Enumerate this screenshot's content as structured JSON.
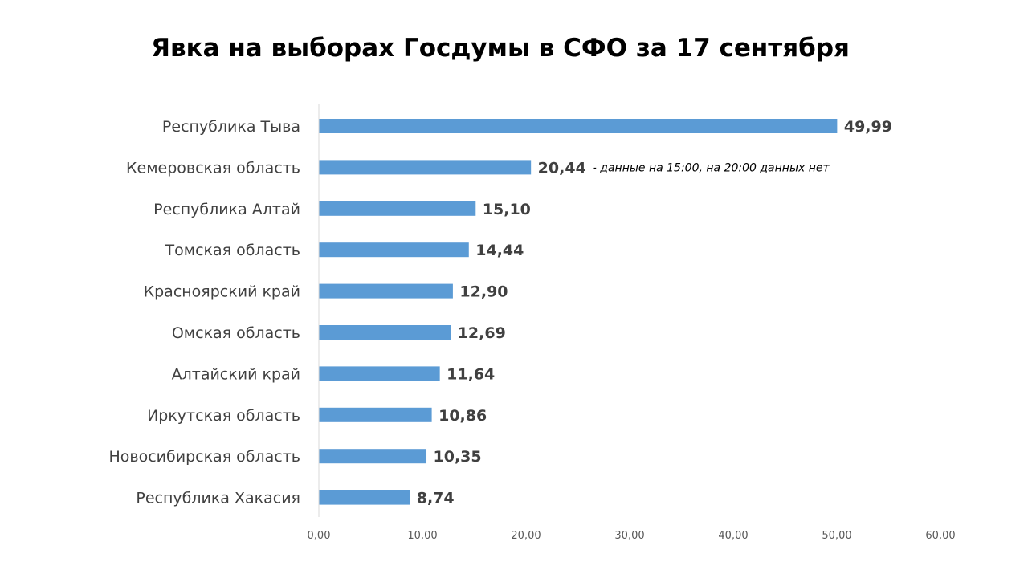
{
  "chart_data": {
    "type": "bar",
    "orientation": "horizontal",
    "title": "Явка на выборах Госдумы в СФО за 17 сентября",
    "categories": [
      "Республика Тыва",
      "Кемеровская область",
      "Республика Алтай",
      "Томская область",
      "Красноярский край",
      "Омская область",
      "Алтайский край",
      "Иркутская область",
      "Новосибирская область",
      "Республика Хакасия"
    ],
    "values": [
      49.99,
      20.44,
      15.1,
      14.44,
      12.9,
      12.69,
      11.64,
      10.86,
      10.35,
      8.74
    ],
    "value_labels": [
      "49,99",
      "20,44",
      "15,10",
      "14,44",
      "12,90",
      "12,69",
      "11,64",
      "10,86",
      "10,35",
      "8,74"
    ],
    "xlim": [
      0,
      60
    ],
    "xticks": [
      0,
      10,
      20,
      30,
      40,
      50,
      60
    ],
    "xtick_labels": [
      "0,00",
      "10,00",
      "20,00",
      "30,00",
      "40,00",
      "50,00",
      "60,00"
    ],
    "annotations": [
      {
        "category": "Кемеровская область",
        "text": "- данные на 15:00, на 20:00 данных нет"
      }
    ],
    "bar_color": "#5B9BD5",
    "grid": false,
    "legend": "none",
    "xlabel": "",
    "ylabel": ""
  }
}
